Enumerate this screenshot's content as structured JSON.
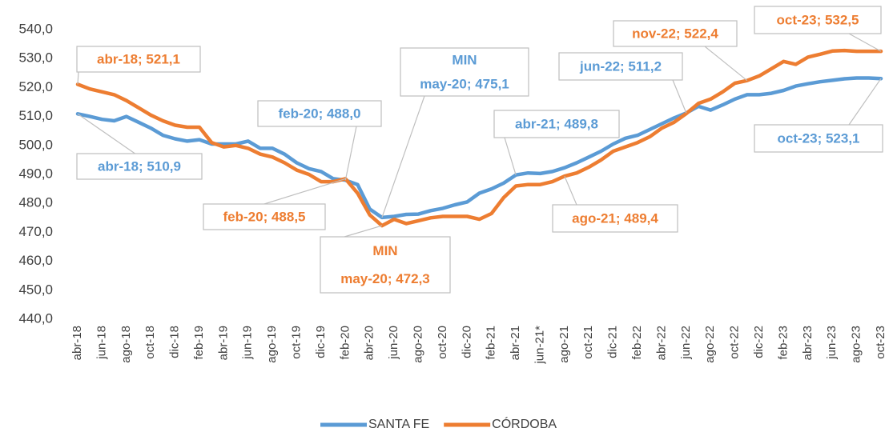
{
  "chart_data": {
    "type": "line",
    "categories": [
      "abr-18",
      null,
      "jun-18",
      null,
      "ago-18",
      null,
      "oct-18",
      null,
      "dic-18",
      null,
      "feb-19",
      null,
      "abr-19",
      null,
      "jun-19",
      null,
      "ago-19",
      null,
      "oct-19",
      null,
      "dic-19",
      null,
      "feb-20",
      null,
      "abr-20",
      null,
      "jun-20",
      null,
      "ago-20",
      null,
      "oct-20",
      null,
      "dic-20",
      null,
      "feb-21",
      null,
      "abr-21",
      null,
      "jun-21*",
      null,
      "ago-21",
      null,
      "oct-21",
      null,
      "dic-21",
      null,
      "feb-22",
      null,
      "abr-22",
      null,
      "jun-22",
      null,
      "ago-22",
      null,
      "oct-22",
      null,
      "dic-22",
      null,
      "feb-23",
      null,
      "abr-23",
      null,
      "jun-23",
      null,
      "ago-23",
      null,
      "oct-23"
    ],
    "series": [
      {
        "name": "SANTA FE",
        "color": "#5b9bd5",
        "values": [
          510.9,
          510.0,
          509.0,
          508.5,
          510.0,
          508.0,
          506.0,
          503.5,
          502.3,
          501.5,
          502.0,
          500.5,
          500.5,
          500.5,
          501.5,
          499.0,
          499.0,
          497.0,
          494.0,
          492.0,
          491.0,
          488.5,
          488.0,
          486.5,
          478.0,
          475.1,
          475.5,
          476.2,
          476.3,
          477.5,
          478.3,
          479.5,
          480.5,
          483.5,
          485.0,
          487.0,
          489.8,
          490.5,
          490.3,
          491.0,
          492.3,
          494.0,
          496.0,
          498.0,
          500.5,
          502.5,
          503.5,
          505.5,
          507.5,
          509.5,
          511.2,
          513.5,
          512.2,
          514.0,
          516.0,
          517.5,
          517.5,
          518.0,
          519.0,
          520.5,
          521.3,
          522.0,
          522.5,
          523.0,
          523.3,
          523.3,
          523.1
        ]
      },
      {
        "name": "CÓRDOBA",
        "color": "#ed7d31",
        "values": [
          521.1,
          519.5,
          518.5,
          517.5,
          515.5,
          513.0,
          510.5,
          508.5,
          507.0,
          506.3,
          506.3,
          501.0,
          499.5,
          500.0,
          499.0,
          497.0,
          496.0,
          494.0,
          491.5,
          490.0,
          487.5,
          487.5,
          488.5,
          483.5,
          476.0,
          472.3,
          474.5,
          473.0,
          474.0,
          475.0,
          475.5,
          475.5,
          475.5,
          474.5,
          476.5,
          482.0,
          486.0,
          486.5,
          486.5,
          487.5,
          489.4,
          490.5,
          492.5,
          495.0,
          498.0,
          499.5,
          501.0,
          503.0,
          506.0,
          508.0,
          511.0,
          514.5,
          516.0,
          518.5,
          521.5,
          522.4,
          524.0,
          526.5,
          529.0,
          528.0,
          530.5,
          531.5,
          532.6,
          532.8,
          532.5,
          532.5,
          532.5
        ]
      }
    ],
    "ylim": [
      440,
      540
    ],
    "yticks": [
      {
        "value": 440,
        "label": "440,0"
      },
      {
        "value": 450,
        "label": "450,0"
      },
      {
        "value": 460,
        "label": "460,0"
      },
      {
        "value": 470,
        "label": "470,0"
      },
      {
        "value": 480,
        "label": "480,0"
      },
      {
        "value": 490,
        "label": "490,0"
      },
      {
        "value": 500,
        "label": "500,0"
      },
      {
        "value": 510,
        "label": "510,0"
      },
      {
        "value": 520,
        "label": "520,0"
      },
      {
        "value": 530,
        "label": "530,0"
      },
      {
        "value": 540,
        "label": "540,0"
      }
    ],
    "legend": "bottom",
    "annotations": [
      {
        "lines": [
          "abr-18; 521,1"
        ]
      },
      {
        "lines": [
          "abr-18; 510,9"
        ]
      },
      {
        "lines": [
          "feb-20; 488,0"
        ]
      },
      {
        "lines": [
          "MIN",
          "may-20; 475,1"
        ]
      },
      {
        "lines": [
          "feb-20; 488,5"
        ]
      },
      {
        "lines": [
          "MIN",
          "may-20; 472,3"
        ]
      },
      {
        "lines": [
          "abr-21; 489,8"
        ]
      },
      {
        "lines": [
          "ago-21; 489,4"
        ]
      },
      {
        "lines": [
          "jun-22; 511,2"
        ]
      },
      {
        "lines": [
          "nov-22; 522,4"
        ]
      },
      {
        "lines": [
          "oct-23; 532,5"
        ]
      },
      {
        "lines": [
          "oct-23; 523,1"
        ]
      }
    ]
  }
}
